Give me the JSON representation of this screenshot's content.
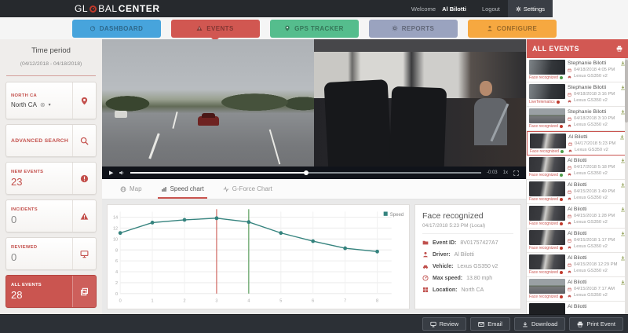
{
  "header": {
    "logo": {
      "part1": "GL",
      "part2": "BAL",
      "part3": "CENTER"
    },
    "welcome_prefix": "Welcome",
    "user_name": "Al Bilotti",
    "logout_label": "Logout",
    "settings_label": "Settings"
  },
  "nav": {
    "items": [
      {
        "label": "DASHBOARD",
        "color": "#47a4dc"
      },
      {
        "label": "EVENTS",
        "color": "#d15751",
        "active": true
      },
      {
        "label": "GPS TRACKER",
        "color": "#55bd8d"
      },
      {
        "label": "REPORTS",
        "color": "#9aa3bf"
      },
      {
        "label": "CONFIGURE",
        "color": "#f6a840"
      }
    ]
  },
  "sidebar": {
    "time_period_title": "Time period",
    "time_period_range": "(04/12/2018 - 04/18/2018)",
    "region_label": "NORTH CA",
    "region_value": "North CA",
    "clear_glyph": "⊗",
    "caret_glyph": "▾",
    "advanced_search_label": "ADVANCED SEARCH",
    "counters": {
      "new_events_label": "NEW EVENTS",
      "new_events_value": "23",
      "incidents_label": "INCIDENTS",
      "incidents_value": "0",
      "reviewed_label": "REVIEWED",
      "reviewed_value": "0",
      "all_events_label": "ALL EVENTS",
      "all_events_value": "28"
    }
  },
  "player": {
    "play_glyph": "▶",
    "remaining_time": "-0:03",
    "playback_rate": "1x"
  },
  "tabs": {
    "items": [
      {
        "label": "Map"
      },
      {
        "label": "Speed chart",
        "active": true
      },
      {
        "label": "G-Force Chart"
      }
    ]
  },
  "chart_data": {
    "type": "line",
    "title": "",
    "xlabel": "",
    "ylabel": "",
    "x": [
      0,
      1,
      2,
      3,
      4,
      5,
      6,
      7,
      8
    ],
    "series": [
      {
        "name": "Speed",
        "values": [
          11.1,
          13.0,
          13.5,
          13.8,
          13.1,
          11.1,
          9.6,
          8.3,
          7.7
        ],
        "color": "#35837e"
      }
    ],
    "ylim": [
      0,
      15
    ],
    "yticks": [
      0,
      2,
      4,
      6,
      8,
      10,
      12,
      14
    ],
    "markers": [
      {
        "type": "vline",
        "x": 3,
        "color": "#c94c44"
      },
      {
        "type": "vline",
        "x": 4,
        "color": "#3e8e41"
      }
    ],
    "legend_position": "top-right",
    "grid": true
  },
  "event_details": {
    "title": "Face recognized",
    "datetime": "04/17/2018 5:23 PM (Local)",
    "rows": [
      {
        "label": "Event ID:",
        "value": "8V01757427A7",
        "icon": "folder-icon"
      },
      {
        "label": "Driver:",
        "value": "Al Bilotti",
        "icon": "driver-icon"
      },
      {
        "label": "Vehicle:",
        "value": "Lexus GS350 v2",
        "icon": "car-icon"
      },
      {
        "label": "Max speed:",
        "value": "13.80 mph",
        "icon": "speedometer-icon"
      },
      {
        "label": "Location:",
        "value": "North CA",
        "icon": "location-icon"
      }
    ]
  },
  "events_panel": {
    "title": "ALL EVENTS",
    "items": [
      {
        "name": "Stephanie Bilotti",
        "date": "04/18/2018 4:05 PM",
        "vehicle": "Lexus GS350 v2",
        "tag": "Face recognized",
        "tag_status": "green",
        "thumb": "road-dark",
        "selected": false
      },
      {
        "name": "Stephanie Bilotti",
        "date": "04/18/2018 3:16 PM",
        "vehicle": "Lexus GS350 v2",
        "tag": "LiveTelematics",
        "tag_status": "red",
        "thumb": "road-dark",
        "selected": false
      },
      {
        "name": "Stephanie Bilotti",
        "date": "04/18/2018 3:10 PM",
        "vehicle": "Lexus GS350 v2",
        "tag": "Face recognized",
        "tag_status": "red",
        "thumb": "road",
        "selected": false
      },
      {
        "name": "Al Bilotti",
        "date": "04/17/2018 5:23 PM",
        "vehicle": "Lexus GS350 v2",
        "tag": "Face recognized",
        "tag_status": "green",
        "thumb": "driver",
        "selected": true
      },
      {
        "name": "Al Bilotti",
        "date": "04/17/2018 5:18 PM",
        "vehicle": "Lexus GS350 v2",
        "tag": "Face recognized",
        "tag_status": "green",
        "thumb": "driver",
        "selected": false
      },
      {
        "name": "Al Bilotti",
        "date": "04/15/2018 1:49 PM",
        "vehicle": "Lexus GS350 v2",
        "tag": "Face recognized",
        "tag_status": "red",
        "thumb": "driver",
        "selected": false
      },
      {
        "name": "Al Bilotti",
        "date": "04/15/2018 1:28 PM",
        "vehicle": "Lexus GS350 v2",
        "tag": "Face recognized",
        "tag_status": "red",
        "thumb": "driver",
        "selected": false
      },
      {
        "name": "Al Bilotti",
        "date": "04/15/2018 1:17 PM",
        "vehicle": "Lexus GS350 v2",
        "tag": "Face recognized",
        "tag_status": "red",
        "thumb": "driver",
        "selected": false
      },
      {
        "name": "Al Bilotti",
        "date": "04/15/2018 12:29 PM",
        "vehicle": "Lexus GS350 v2",
        "tag": "Face recognized",
        "tag_status": "red",
        "thumb": "driver",
        "selected": false
      },
      {
        "name": "Al Bilotti",
        "date": "04/15/2018 7:17 AM",
        "vehicle": "Lexus GS350 v2",
        "tag": "Face recognized",
        "tag_status": "red",
        "thumb": "road",
        "selected": false
      },
      {
        "name": "Al Bilotti",
        "date": "",
        "vehicle": "",
        "tag": "",
        "tag_status": "",
        "thumb": "dark",
        "selected": false
      }
    ]
  },
  "footer": {
    "buttons": [
      {
        "label": "Review",
        "icon": "monitor-icon"
      },
      {
        "label": "Email",
        "icon": "envelope-icon"
      },
      {
        "label": "Download",
        "icon": "download-icon"
      },
      {
        "label": "Print Event",
        "icon": "printer-icon"
      }
    ]
  }
}
